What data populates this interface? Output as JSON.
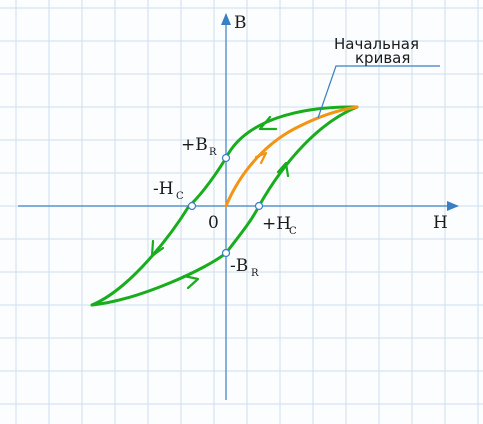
{
  "axes": {
    "x_label": "H",
    "y_label": "B",
    "origin_label": "0"
  },
  "points": {
    "plus_br": {
      "main": "+B",
      "sub": "R"
    },
    "minus_br": {
      "main": "-B",
      "sub": "R"
    },
    "minus_hc": {
      "main": "-H",
      "sub": "C"
    },
    "plus_hc": {
      "main": "+H",
      "sub": "C"
    }
  },
  "callout": {
    "line1": "Начальная",
    "line2": "кривая"
  },
  "colors": {
    "grid": "#cfe0ee",
    "axis": "#3a7fc4",
    "loop": "#17ad1c",
    "initial_curve": "#f29414",
    "leader": "#3a7fc4",
    "marker_fill": "#ffffff",
    "marker_stroke": "#3a7fc4"
  }
}
